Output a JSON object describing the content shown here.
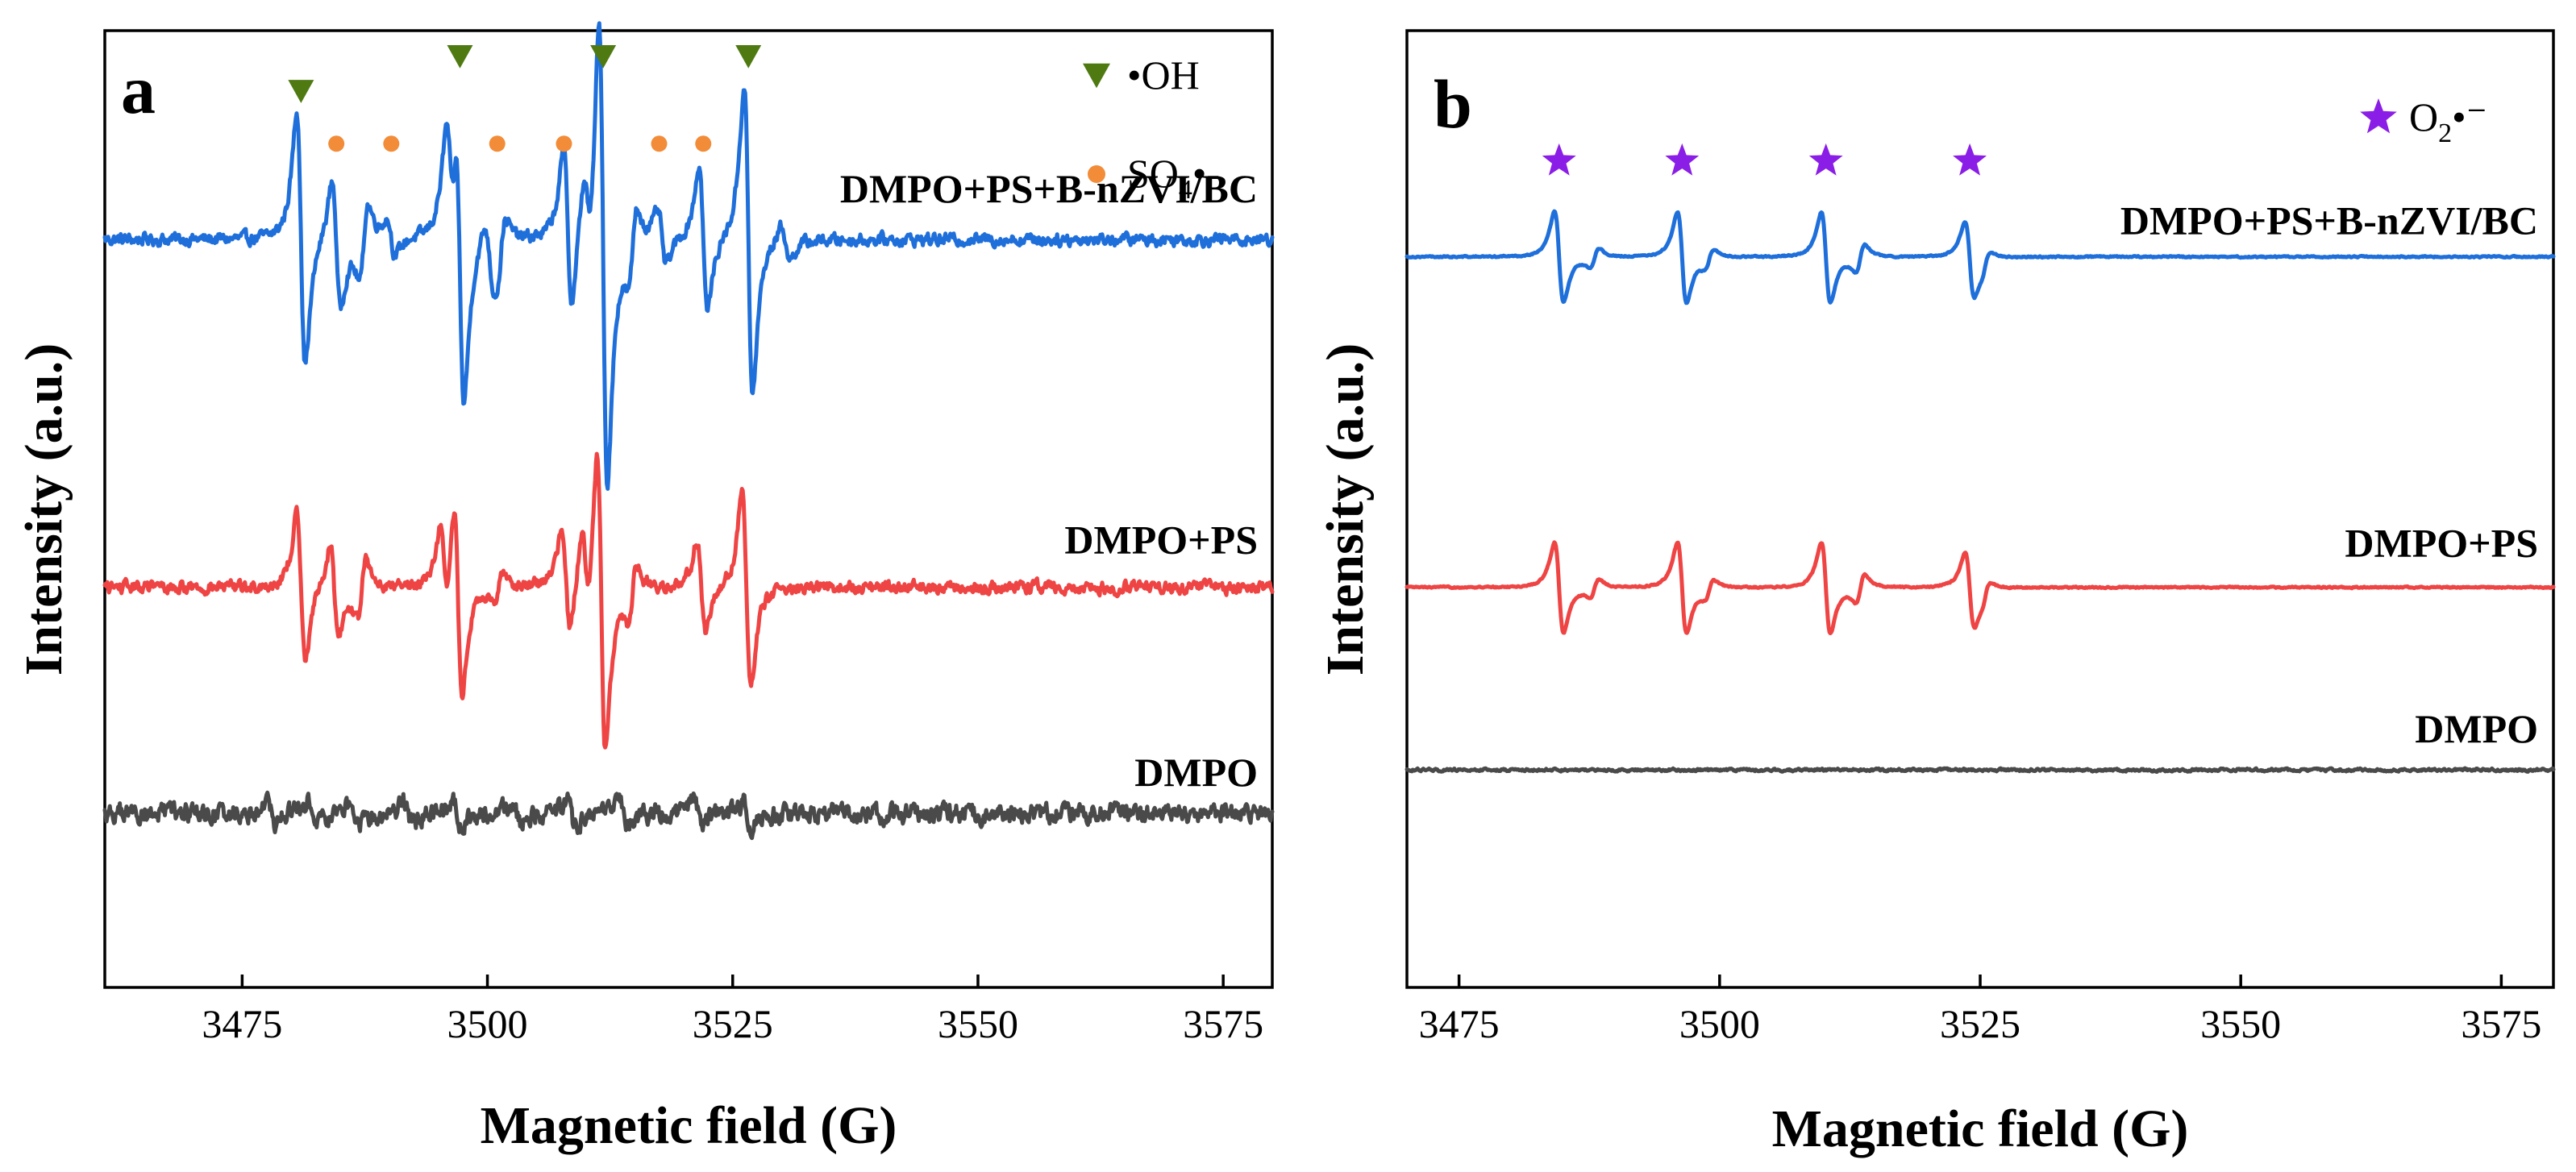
{
  "figure": {
    "xlabel": "Magnetic field (G)",
    "ylabel": "Intensity (a.u.)"
  },
  "chart_data": [
    {
      "type": "line",
      "panel": "a",
      "title": "",
      "xlabel": "Magnetic field (G)",
      "ylabel": "Intensity (a.u.)",
      "xlim": [
        3461,
        3580
      ],
      "ylim": [
        -10,
        100
      ],
      "xticks": [
        3475,
        3500,
        3525,
        3550,
        3575
      ],
      "yticks": [],
      "legend": [
        {
          "symbol": "triangle-down",
          "color": "#4f7a12",
          "text": "•OH",
          "sub": "",
          "sup": ""
        },
        {
          "symbol": "circle",
          "color": "#f28c38",
          "text": "SO",
          "sub": "4",
          "rest": "•-"
        }
      ],
      "series": [
        {
          "name": "DMPO+PS+B-nZVI/BC",
          "color": "#1f6fdb",
          "baseline": 76,
          "noise": 0.7,
          "peaks": [
            {
              "x": 3481.0,
              "amp": 14
            },
            {
              "x": 3484.6,
              "amp": 7
            },
            {
              "x": 3487.4,
              "amp": -4
            },
            {
              "x": 3490.2,
              "amp": 2
            },
            {
              "x": 3496.2,
              "amp": 8
            },
            {
              "x": 3497.2,
              "amp": 16
            },
            {
              "x": 3500.2,
              "amp": 3
            },
            {
              "x": 3501.4,
              "amp": -3
            },
            {
              "x": 3508.2,
              "amp": 9
            },
            {
              "x": 3510.2,
              "amp": 5
            },
            {
              "x": 3511.8,
              "amp": 26
            },
            {
              "x": 3514.8,
              "amp": -4
            },
            {
              "x": 3517.8,
              "amp": 3
            },
            {
              "x": 3522.0,
              "amp": 8
            },
            {
              "x": 3526.6,
              "amp": 17
            },
            {
              "x": 3530.4,
              "amp": 2
            }
          ]
        },
        {
          "name": "DMPO+PS",
          "color": "#ef4444",
          "baseline": 36,
          "noise": 0.7,
          "peaks": [
            {
              "x": 3481.0,
              "amp": 8
            },
            {
              "x": 3484.4,
              "amp": 5
            },
            {
              "x": 3487.2,
              "amp": -3
            },
            {
              "x": 3495.6,
              "amp": 5
            },
            {
              "x": 3497.0,
              "amp": 11
            },
            {
              "x": 3501.2,
              "amp": -2
            },
            {
              "x": 3508.0,
              "amp": 6
            },
            {
              "x": 3510.0,
              "amp": 5
            },
            {
              "x": 3511.6,
              "amp": 17
            },
            {
              "x": 3514.8,
              "amp": -3
            },
            {
              "x": 3521.8,
              "amp": 5
            },
            {
              "x": 3526.4,
              "amp": 11
            }
          ]
        },
        {
          "name": "DMPO",
          "color": "#4a4a4a",
          "baseline": 10,
          "noise": 1.1,
          "peaks": [
            {
              "x": 3478.0,
              "amp": 1.2
            },
            {
              "x": 3482.0,
              "amp": 1.5
            },
            {
              "x": 3486.5,
              "amp": 1.3
            },
            {
              "x": 3492.0,
              "amp": 1.2
            },
            {
              "x": 3497.0,
              "amp": 1.3
            },
            {
              "x": 3503.0,
              "amp": 1.2
            },
            {
              "x": 3508.5,
              "amp": 1.5
            },
            {
              "x": 3514.0,
              "amp": 1.3
            },
            {
              "x": 3521.5,
              "amp": 1.4
            },
            {
              "x": 3526.5,
              "amp": 1.3
            }
          ]
        }
      ],
      "markers": [
        {
          "symbol": "triangle-down",
          "color": "#4f7a12",
          "points": [
            [
              3481.0,
              93
            ],
            [
              3497.2,
              97
            ],
            [
              3511.8,
              97
            ],
            [
              3526.6,
              97
            ]
          ]
        },
        {
          "symbol": "circle",
          "color": "#f28c38",
          "points": [
            [
              3484.6,
              87
            ],
            [
              3490.2,
              87
            ],
            [
              3501.0,
              87
            ],
            [
              3507.8,
              87
            ],
            [
              3517.5,
              87
            ],
            [
              3522.0,
              87
            ]
          ]
        }
      ]
    },
    {
      "type": "line",
      "panel": "b",
      "title": "",
      "xlabel": "Magnetic field (G)",
      "ylabel": "Intensity (a.u.)",
      "xlim": [
        3470,
        3580
      ],
      "ylim": [
        -10,
        100
      ],
      "xticks": [
        3475,
        3500,
        3525,
        3550,
        3575
      ],
      "yticks": [],
      "legend": [
        {
          "symbol": "star",
          "color": "#8b1ee6",
          "text": "O",
          "sub": "2",
          "rest": "•⁻"
        }
      ],
      "series": [
        {
          "name": "DMPO+PS+B-nZVI/BC",
          "color": "#1f6fdb",
          "baseline": 74,
          "noise": 0.08,
          "peaks": [
            {
              "x": 3484.6,
              "amp": 5
            },
            {
              "x": 3488.0,
              "amp": -1
            },
            {
              "x": 3496.4,
              "amp": 5
            },
            {
              "x": 3499.0,
              "amp": -1
            },
            {
              "x": 3510.2,
              "amp": 5
            },
            {
              "x": 3513.5,
              "amp": -1.5
            },
            {
              "x": 3524.0,
              "amp": 4
            },
            {
              "x": 3525.5,
              "amp": -1
            }
          ]
        },
        {
          "name": "DMPO+PS",
          "color": "#ef4444",
          "baseline": 36,
          "noise": 0.08,
          "peaks": [
            {
              "x": 3484.6,
              "amp": 5
            },
            {
              "x": 3488.0,
              "amp": -1
            },
            {
              "x": 3496.4,
              "amp": 5
            },
            {
              "x": 3499.0,
              "amp": -1
            },
            {
              "x": 3510.2,
              "amp": 5
            },
            {
              "x": 3513.5,
              "amp": -1.5
            },
            {
              "x": 3524.0,
              "amp": 4
            },
            {
              "x": 3525.5,
              "amp": -1
            }
          ]
        },
        {
          "name": "DMPO",
          "color": "#4a4a4a",
          "baseline": 15,
          "noise": 0.15,
          "peaks": []
        }
      ],
      "markers": [
        {
          "symbol": "star",
          "color": "#8b1ee6",
          "points": [
            [
              3484.6,
              85
            ],
            [
              3496.4,
              85
            ],
            [
              3510.2,
              85
            ],
            [
              3524.0,
              85
            ]
          ]
        }
      ]
    }
  ]
}
